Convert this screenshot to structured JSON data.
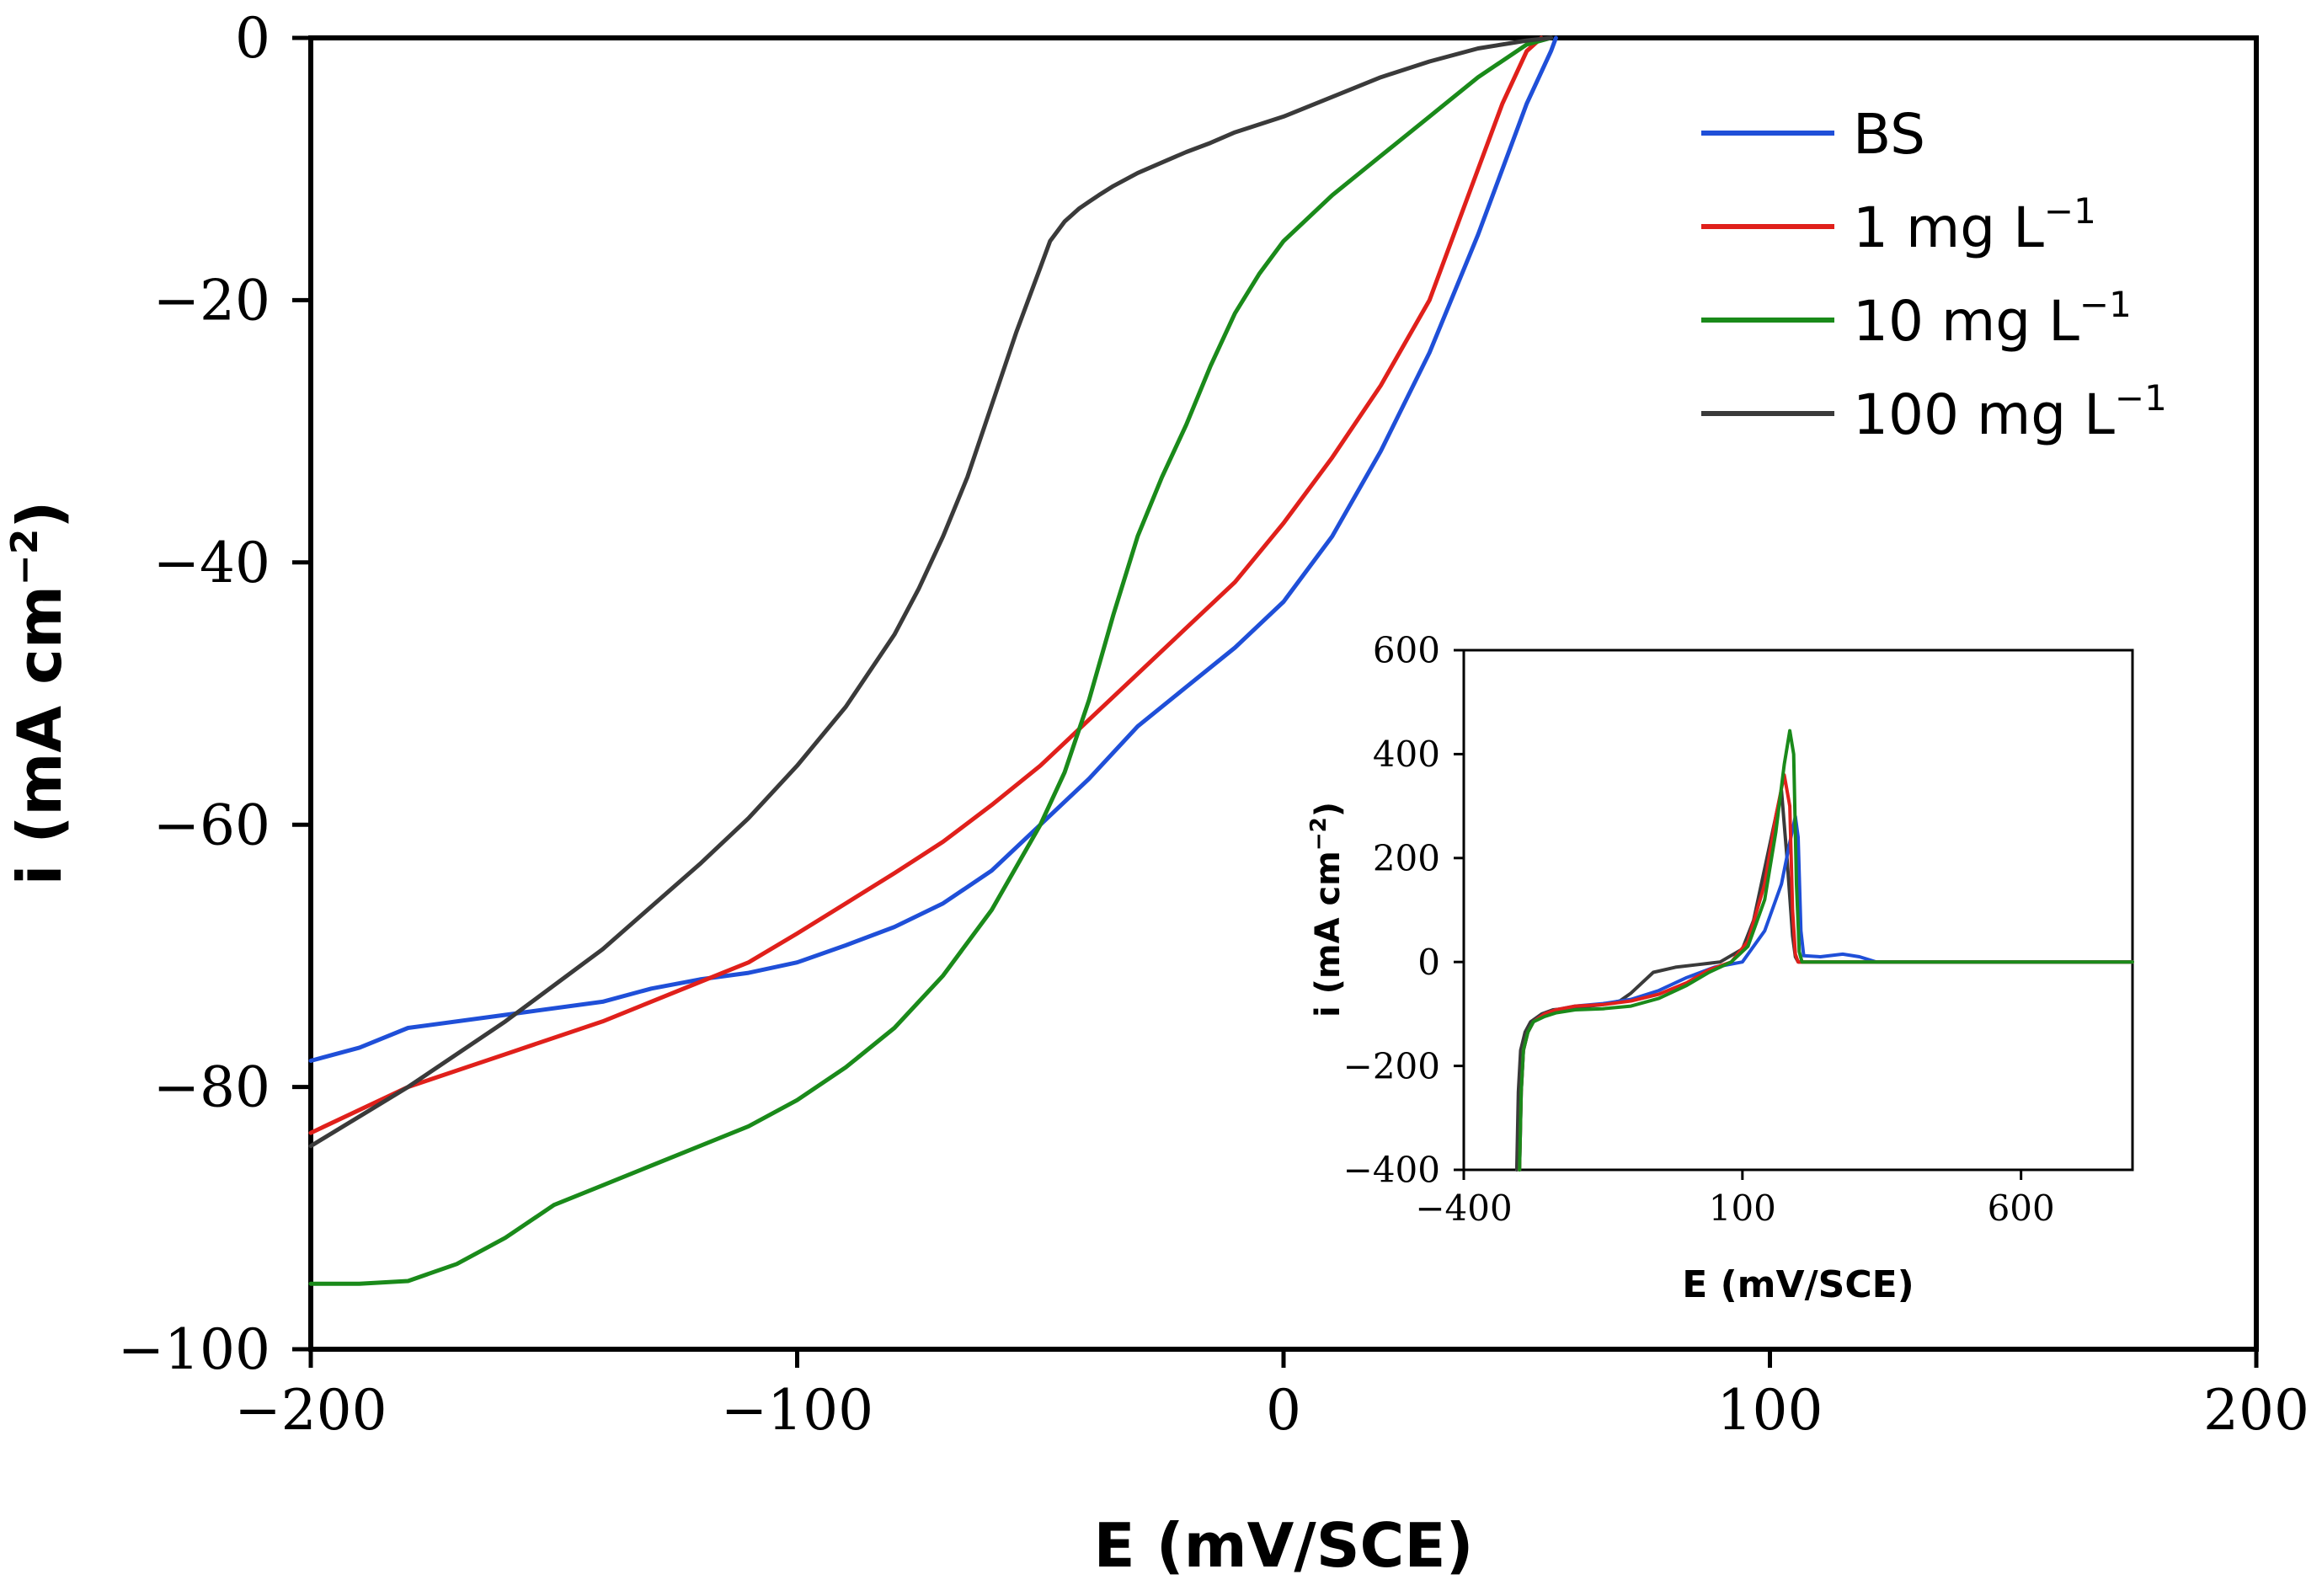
{
  "chart_data": [
    {
      "id": "main",
      "type": "line",
      "title": "",
      "xlabel": "E (mV/SCE)",
      "ylabel_main": "i (mA cm",
      "ylabel_sup": "−2",
      "ylabel_end": ")",
      "xlim": [
        -200,
        200
      ],
      "ylim": [
        -100,
        0
      ],
      "xticks": [
        -200,
        -100,
        0,
        100,
        200
      ],
      "yticks": [
        0,
        -20,
        -40,
        -60,
        -80,
        -100
      ],
      "xtick_labels": [
        "−200",
        "−100",
        "0",
        "100",
        "200"
      ],
      "ytick_labels": [
        "0",
        "−20",
        "−40",
        "−60",
        "−80",
        "−100"
      ],
      "grid": false,
      "legend_position": "top-right",
      "legend": [
        {
          "name": "BS",
          "color": "#1f4fd8",
          "text": "BS",
          "sup": ""
        },
        {
          "name": "1 mg L-1",
          "color": "#e0201b",
          "text": "1  mg L",
          "sup": "−1"
        },
        {
          "name": "10 mg L-1",
          "color": "#1a8a1a",
          "text": "10 mg L",
          "sup": "−1"
        },
        {
          "name": "100 mg L-1",
          "color": "#3a3a3a",
          "text": "100 mg L",
          "sup": "−1"
        }
      ],
      "series": [
        {
          "name": "BS",
          "color": "#1f4fd8",
          "x": [
            -200,
            -190,
            -180,
            -160,
            -140,
            -130,
            -120,
            -110,
            -100,
            -90,
            -80,
            -70,
            -60,
            -50,
            -40,
            -30,
            -20,
            -10,
            0,
            10,
            20,
            30,
            40,
            45,
            50,
            55,
            56
          ],
          "y": [
            -78,
            -77,
            -75.5,
            -74.5,
            -73.5,
            -72.5,
            -71.8,
            -71.3,
            -70.5,
            -69.2,
            -67.8,
            -66,
            -63.5,
            -60,
            -56.5,
            -52.5,
            -49.5,
            -46.5,
            -43,
            -38,
            -31.5,
            -24,
            -15,
            -10,
            -5,
            -1,
            0
          ]
        },
        {
          "name": "1 mg L-1",
          "color": "#e0201b",
          "x": [
            -200,
            -180,
            -160,
            -140,
            -120,
            -110,
            -100,
            -90,
            -80,
            -70,
            -60,
            -50,
            -40,
            -30,
            -20,
            -10,
            0,
            10,
            20,
            30,
            40,
            45,
            50,
            53
          ],
          "y": [
            -83.5,
            -80,
            -77.5,
            -75,
            -72,
            -70.5,
            -68.3,
            -66,
            -63.7,
            -61.3,
            -58.5,
            -55.5,
            -52,
            -48.5,
            -45,
            -41.5,
            -37,
            -32,
            -26.5,
            -20,
            -10,
            -5,
            -1,
            0
          ]
        },
        {
          "name": "10 mg L-1",
          "color": "#1a8a1a",
          "x": [
            -200,
            -190,
            -180,
            -170,
            -160,
            -150,
            -140,
            -130,
            -120,
            -110,
            -100,
            -90,
            -80,
            -70,
            -60,
            -50,
            -45,
            -40,
            -35,
            -30,
            -25,
            -20,
            -15,
            -10,
            -5,
            0,
            10,
            20,
            30,
            40,
            50,
            55
          ],
          "y": [
            -95,
            -95,
            -94.8,
            -93.5,
            -91.5,
            -89,
            -87.5,
            -86,
            -84.5,
            -83,
            -81,
            -78.5,
            -75.5,
            -71.5,
            -66.5,
            -60,
            -56,
            -50.5,
            -44,
            -38,
            -33.5,
            -29.5,
            -25,
            -21,
            -18,
            -15.5,
            -12,
            -9,
            -6,
            -3,
            -0.5,
            0
          ]
        },
        {
          "name": "100 mg L-1",
          "color": "#3a3a3a",
          "x": [
            -200,
            -180,
            -160,
            -140,
            -120,
            -110,
            -100,
            -90,
            -80,
            -75,
            -70,
            -65,
            -60,
            -55,
            -52,
            -50,
            -48,
            -45,
            -42,
            -40,
            -38,
            -35,
            -30,
            -25,
            -20,
            -15,
            -10,
            0,
            10,
            20,
            30,
            40,
            50,
            55
          ],
          "y": [
            -84.5,
            -80,
            -75,
            -69.5,
            -63,
            -59.5,
            -55.5,
            -51,
            -45.5,
            -42,
            -38,
            -33.5,
            -28,
            -22.5,
            -19.5,
            -17.5,
            -15.5,
            -14,
            -13,
            -12.5,
            -12,
            -11.3,
            -10.3,
            -9.5,
            -8.7,
            -8,
            -7.2,
            -6,
            -4.5,
            -3,
            -1.8,
            -0.8,
            -0.2,
            0
          ]
        }
      ]
    },
    {
      "id": "inset",
      "type": "line",
      "title": "",
      "xlabel": "E (mV/SCE)",
      "ylabel_main": "i (mA cm",
      "ylabel_sup": "−2",
      "ylabel_end": ")",
      "xlim": [
        -400,
        800
      ],
      "ylim": [
        -400,
        600
      ],
      "xticks": [
        -400,
        100,
        600
      ],
      "yticks": [
        600,
        400,
        200,
        0,
        -200,
        -400
      ],
      "xtick_labels": [
        "−400",
        "100",
        "600"
      ],
      "ytick_labels": [
        "600",
        "400",
        "200",
        "0",
        "−200",
        "−400"
      ],
      "grid": false,
      "series": [
        {
          "name": "100 mg L-1",
          "color": "#3a3a3a",
          "x": [
            -305,
            -302,
            -298,
            -290,
            -280,
            -260,
            -240,
            -200,
            -150,
            -120,
            -100,
            -60,
            -20,
            20,
            60,
            100,
            120,
            140,
            160,
            170,
            180,
            190,
            195,
            200,
            800
          ],
          "y": [
            -400,
            -250,
            -170,
            -135,
            -115,
            -100,
            -92,
            -88,
            -82,
            -75,
            -60,
            -20,
            -10,
            -5,
            0,
            25,
            80,
            180,
            280,
            330,
            200,
            50,
            10,
            0,
            0
          ]
        },
        {
          "name": "BS",
          "color": "#1f4fd8",
          "x": [
            -300,
            -297,
            -293,
            -285,
            -275,
            -255,
            -235,
            -200,
            -150,
            -100,
            -50,
            0,
            50,
            100,
            140,
            170,
            185,
            195,
            200,
            205,
            210,
            240,
            280,
            310,
            340,
            800
          ],
          "y": [
            -400,
            -250,
            -170,
            -135,
            -115,
            -100,
            -92,
            -85,
            -80,
            -72,
            -55,
            -30,
            -10,
            0,
            60,
            150,
            230,
            280,
            240,
            60,
            12,
            10,
            15,
            10,
            0,
            0
          ]
        },
        {
          "name": "1 mg L-1",
          "color": "#e0201b",
          "x": [
            -300,
            -297,
            -293,
            -285,
            -275,
            -255,
            -235,
            -200,
            -150,
            -100,
            -50,
            0,
            40,
            80,
            110,
            140,
            160,
            175,
            185,
            190,
            195,
            200,
            800
          ],
          "y": [
            -400,
            -250,
            -170,
            -135,
            -115,
            -100,
            -92,
            -85,
            -82,
            -75,
            -62,
            -40,
            -15,
            0,
            40,
            150,
            280,
            360,
            300,
            100,
            15,
            0,
            0
          ]
        },
        {
          "name": "10 mg L-1",
          "color": "#1a8a1a",
          "x": [
            -300,
            -297,
            -293,
            -285,
            -275,
            -255,
            -235,
            -200,
            -150,
            -100,
            -50,
            0,
            40,
            80,
            110,
            140,
            160,
            175,
            185,
            192,
            197,
            202,
            207,
            800
          ],
          "y": [
            -400,
            -250,
            -170,
            -135,
            -115,
            -105,
            -98,
            -92,
            -90,
            -85,
            -70,
            -45,
            -20,
            0,
            30,
            120,
            250,
            380,
            445,
            400,
            150,
            20,
            0,
            0
          ]
        }
      ]
    }
  ]
}
